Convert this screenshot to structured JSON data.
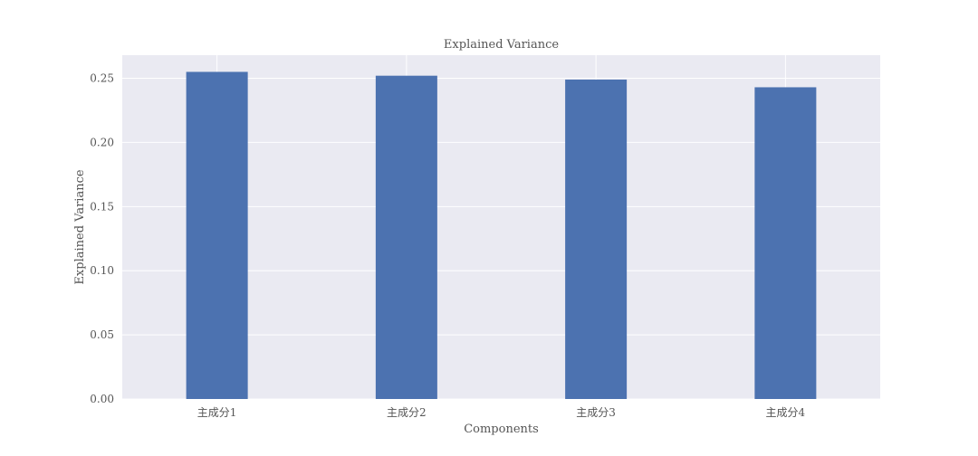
{
  "chart_data": {
    "type": "bar",
    "title": "Explained Variance",
    "xlabel": "Components",
    "ylabel": "Explained Variance",
    "categories": [
      "主成分1",
      "主成分2",
      "主成分3",
      "主成分4"
    ],
    "values": [
      0.255,
      0.252,
      0.249,
      0.243
    ],
    "ylim": [
      0,
      0.268
    ],
    "yticks": [
      0.0,
      0.05,
      0.1,
      0.15,
      0.2,
      0.25
    ],
    "ytick_labels": [
      "0.00",
      "0.05",
      "0.10",
      "0.15",
      "0.20",
      "0.25"
    ],
    "grid": true,
    "legend": "none",
    "colors": {
      "bar": "#4c72b0",
      "plot_background": "#eaeaf2",
      "grid": "#ffffff",
      "text": "#555555"
    }
  }
}
